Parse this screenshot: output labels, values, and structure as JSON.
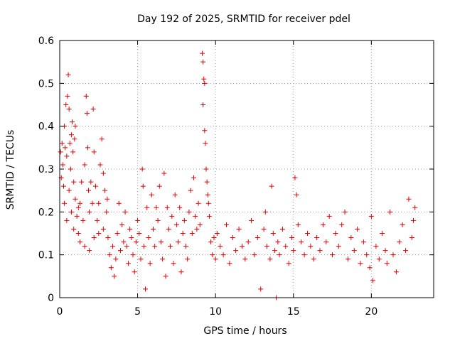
{
  "chart_data": {
    "type": "scatter",
    "title": "Day 192 of 2025, SRMTID for receiver pdel",
    "xlabel": "GPS time / hours",
    "ylabel": "SRMTID / TECUs",
    "xlim": [
      0,
      24
    ],
    "ylim": [
      0,
      0.6
    ],
    "x_ticks": [
      0,
      5,
      10,
      15,
      20
    ],
    "x_tick_labels": [
      "0",
      "5",
      "10",
      "15",
      "20"
    ],
    "y_ticks": [
      0,
      0.1,
      0.2,
      0.3,
      0.4,
      0.5,
      0.6
    ],
    "y_tick_labels": [
      "0",
      "0.1",
      "0.2",
      "0.3",
      "0.4",
      "0.5",
      "0.6"
    ],
    "grid": true,
    "marker": "plus",
    "color": "#e00000",
    "series": [
      {
        "name": "SRMTID",
        "points": [
          [
            0.05,
            0.34
          ],
          [
            0.1,
            0.28
          ],
          [
            0.15,
            0.36
          ],
          [
            0.2,
            0.31
          ],
          [
            0.25,
            0.26
          ],
          [
            0.3,
            0.4
          ],
          [
            0.35,
            0.35
          ],
          [
            0.4,
            0.45
          ],
          [
            0.45,
            0.33
          ],
          [
            0.5,
            0.47
          ],
          [
            0.55,
            0.52
          ],
          [
            0.6,
            0.44
          ],
          [
            0.65,
            0.36
          ],
          [
            0.7,
            0.3
          ],
          [
            0.75,
            0.38
          ],
          [
            0.8,
            0.41
          ],
          [
            0.85,
            0.34
          ],
          [
            0.9,
            0.27
          ],
          [
            0.95,
            0.37
          ],
          [
            1.0,
            0.4
          ],
          [
            0.3,
            0.22
          ],
          [
            0.45,
            0.18
          ],
          [
            0.6,
            0.25
          ],
          [
            0.75,
            0.2
          ],
          [
            0.9,
            0.16
          ],
          [
            1.0,
            0.23
          ],
          [
            1.1,
            0.19
          ],
          [
            1.2,
            0.15
          ],
          [
            1.3,
            0.22
          ],
          [
            1.4,
            0.27
          ],
          [
            1.5,
            0.18
          ],
          [
            1.6,
            0.31
          ],
          [
            1.7,
            0.47
          ],
          [
            1.75,
            0.43
          ],
          [
            1.8,
            0.35
          ],
          [
            1.85,
            0.25
          ],
          [
            1.9,
            0.2
          ],
          [
            2.0,
            0.27
          ],
          [
            2.1,
            0.22
          ],
          [
            2.15,
            0.44
          ],
          [
            2.2,
            0.34
          ],
          [
            2.3,
            0.26
          ],
          [
            2.4,
            0.18
          ],
          [
            2.5,
            0.15
          ],
          [
            2.6,
            0.31
          ],
          [
            2.7,
            0.37
          ],
          [
            2.8,
            0.29
          ],
          [
            2.9,
            0.25
          ],
          [
            3.0,
            0.2
          ],
          [
            3.05,
            0.23
          ],
          [
            1.3,
            0.13
          ],
          [
            1.6,
            0.12
          ],
          [
            2.2,
            0.14
          ],
          [
            2.5,
            0.22
          ],
          [
            2.8,
            0.16
          ],
          [
            1.2,
            0.21
          ],
          [
            1.9,
            0.11
          ],
          [
            3.1,
            0.14
          ],
          [
            3.2,
            0.1
          ],
          [
            3.3,
            0.07
          ],
          [
            3.4,
            0.12
          ],
          [
            3.5,
            0.05
          ],
          [
            3.6,
            0.09
          ],
          [
            3.7,
            0.15
          ],
          [
            3.8,
            0.22
          ],
          [
            3.9,
            0.11
          ],
          [
            4.0,
            0.17
          ],
          [
            4.1,
            0.13
          ],
          [
            4.2,
            0.2
          ],
          [
            4.3,
            0.12
          ],
          [
            4.4,
            0.08
          ],
          [
            4.5,
            0.16
          ],
          [
            4.6,
            0.14
          ],
          [
            4.7,
            0.1
          ],
          [
            4.8,
            0.06
          ],
          [
            4.9,
            0.13
          ],
          [
            5.0,
            0.18
          ],
          [
            5.1,
            0.15
          ],
          [
            5.2,
            0.09
          ],
          [
            5.3,
            0.3
          ],
          [
            5.35,
            0.26
          ],
          [
            5.4,
            0.12
          ],
          [
            5.5,
            0.02
          ],
          [
            5.6,
            0.21
          ],
          [
            5.7,
            0.14
          ],
          [
            5.8,
            0.08
          ],
          [
            5.9,
            0.24
          ],
          [
            6.0,
            0.16
          ],
          [
            6.1,
            0.12
          ],
          [
            6.2,
            0.21
          ],
          [
            6.3,
            0.18
          ],
          [
            6.4,
            0.26
          ],
          [
            6.5,
            0.13
          ],
          [
            6.6,
            0.09
          ],
          [
            6.7,
            0.29
          ],
          [
            6.8,
            0.05
          ],
          [
            6.9,
            0.21
          ],
          [
            7.0,
            0.16
          ],
          [
            7.1,
            0.12
          ],
          [
            7.2,
            0.19
          ],
          [
            7.3,
            0.08
          ],
          [
            7.4,
            0.24
          ],
          [
            7.5,
            0.17
          ],
          [
            7.6,
            0.13
          ],
          [
            7.7,
            0.21
          ],
          [
            7.8,
            0.06
          ],
          [
            7.9,
            0.15
          ],
          [
            8.0,
            0.18
          ],
          [
            8.1,
            0.12
          ],
          [
            8.2,
            0.09
          ],
          [
            8.3,
            0.2
          ],
          [
            8.4,
            0.25
          ],
          [
            8.5,
            0.15
          ],
          [
            8.6,
            0.28
          ],
          [
            8.7,
            0.19
          ],
          [
            8.8,
            0.16
          ],
          [
            8.9,
            0.22
          ],
          [
            9.0,
            0.17
          ],
          [
            9.15,
            0.57
          ],
          [
            9.2,
            0.55
          ],
          [
            9.25,
            0.51
          ],
          [
            9.3,
            0.5
          ],
          [
            9.2,
            0.45
          ],
          [
            9.3,
            0.39
          ],
          [
            9.35,
            0.36
          ],
          [
            9.4,
            0.3
          ],
          [
            9.45,
            0.27
          ],
          [
            9.5,
            0.24
          ],
          [
            9.55,
            0.22
          ],
          [
            9.6,
            0.19
          ],
          [
            9.7,
            0.13
          ],
          [
            9.8,
            0.1
          ],
          [
            9.9,
            0.14
          ],
          [
            10.0,
            0.09
          ],
          [
            10.1,
            0.15
          ],
          [
            10.3,
            0.12
          ],
          [
            10.5,
            0.1
          ],
          [
            10.7,
            0.17
          ],
          [
            10.9,
            0.08
          ],
          [
            11.1,
            0.14
          ],
          [
            11.3,
            0.11
          ],
          [
            11.5,
            0.16
          ],
          [
            11.7,
            0.12
          ],
          [
            11.9,
            0.09
          ],
          [
            12.1,
            0.13
          ],
          [
            12.3,
            0.18
          ],
          [
            12.5,
            0.1
          ],
          [
            12.7,
            0.14
          ],
          [
            12.9,
            0.02
          ],
          [
            13.1,
            0.16
          ],
          [
            13.2,
            0.2
          ],
          [
            13.3,
            0.12
          ],
          [
            13.5,
            0.09
          ],
          [
            13.6,
            0.26
          ],
          [
            13.7,
            0.15
          ],
          [
            13.8,
            0.11
          ],
          [
            13.9,
            0.0
          ],
          [
            14.0,
            0.13
          ],
          [
            14.1,
            0.1
          ],
          [
            14.3,
            0.16
          ],
          [
            14.5,
            0.12
          ],
          [
            14.7,
            0.08
          ],
          [
            14.9,
            0.14
          ],
          [
            15.0,
            0.11
          ],
          [
            15.1,
            0.28
          ],
          [
            15.2,
            0.24
          ],
          [
            15.3,
            0.17
          ],
          [
            15.5,
            0.13
          ],
          [
            15.7,
            0.1
          ],
          [
            15.9,
            0.15
          ],
          [
            16.1,
            0.12
          ],
          [
            16.3,
            0.09
          ],
          [
            16.5,
            0.14
          ],
          [
            16.7,
            0.11
          ],
          [
            16.9,
            0.17
          ],
          [
            17.1,
            0.13
          ],
          [
            17.3,
            0.19
          ],
          [
            17.5,
            0.1
          ],
          [
            17.7,
            0.15
          ],
          [
            17.9,
            0.12
          ],
          [
            18.1,
            0.17
          ],
          [
            18.3,
            0.2
          ],
          [
            18.5,
            0.09
          ],
          [
            18.7,
            0.14
          ],
          [
            18.9,
            0.11
          ],
          [
            19.1,
            0.16
          ],
          [
            19.3,
            0.08
          ],
          [
            19.5,
            0.13
          ],
          [
            19.7,
            0.1
          ],
          [
            19.9,
            0.07
          ],
          [
            20.0,
            0.19
          ],
          [
            20.1,
            0.04
          ],
          [
            20.3,
            0.12
          ],
          [
            20.5,
            0.09
          ],
          [
            20.7,
            0.15
          ],
          [
            20.9,
            0.11
          ],
          [
            21.0,
            0.08
          ],
          [
            21.2,
            0.2
          ],
          [
            21.4,
            0.1
          ],
          [
            21.6,
            0.06
          ],
          [
            21.8,
            0.13
          ],
          [
            22.0,
            0.17
          ],
          [
            22.2,
            0.11
          ],
          [
            22.4,
            0.23
          ],
          [
            22.6,
            0.14
          ],
          [
            22.7,
            0.18
          ],
          [
            22.8,
            0.21
          ]
        ]
      }
    ]
  }
}
